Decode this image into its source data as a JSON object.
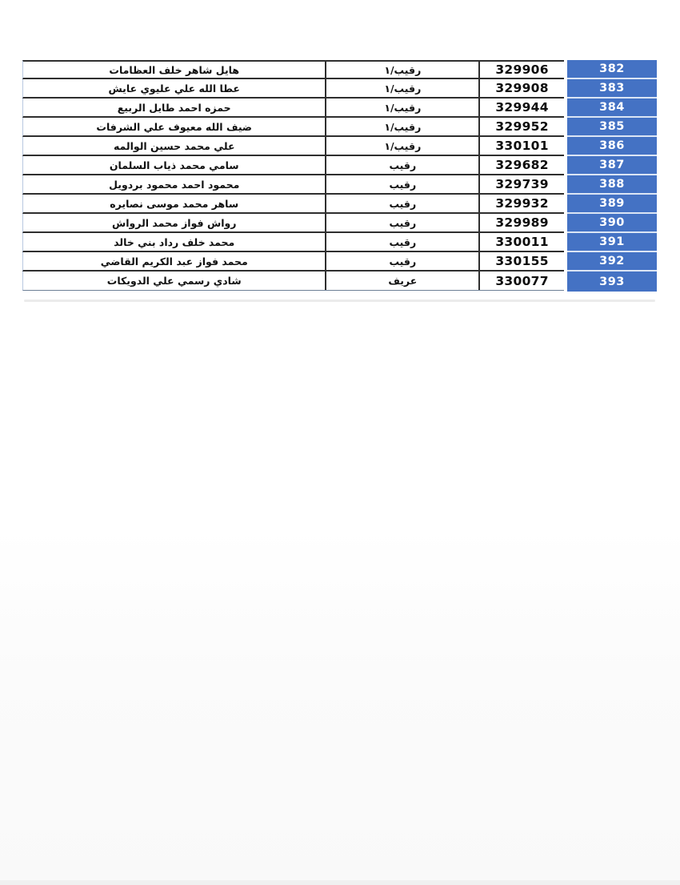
{
  "colors": {
    "row_index_bg": "#4472C4",
    "row_index_text": "#FFFFFF",
    "table_border": "#2F2F2F"
  },
  "table": {
    "rows": [
      {
        "name": "هايل شاهر خلف العظامات",
        "rank": "رقيب/١",
        "service_number": "329906",
        "row_number": "382"
      },
      {
        "name": "عطا الله علي عليوي عايش",
        "rank": "رقيب/١",
        "service_number": "329908",
        "row_number": "383"
      },
      {
        "name": "حمزه احمد طايل الربيع",
        "rank": "رقيب/١",
        "service_number": "329944",
        "row_number": "384"
      },
      {
        "name": "ضيف الله معيوف علي الشرفات",
        "rank": "رقيب/١",
        "service_number": "329952",
        "row_number": "385"
      },
      {
        "name": "علي محمد حسين الوالمه",
        "rank": "رقيب/١",
        "service_number": "330101",
        "row_number": "386"
      },
      {
        "name": "سامي محمد ذياب السلمان",
        "rank": "رقيب",
        "service_number": "329682",
        "row_number": "387"
      },
      {
        "name": "محمود احمد محمود بردويل",
        "rank": "رقيب",
        "service_number": "329739",
        "row_number": "388"
      },
      {
        "name": "ساهر محمد موسى نصايره",
        "rank": "رقيب",
        "service_number": "329932",
        "row_number": "389"
      },
      {
        "name": "رواش فواز محمد الرواش",
        "rank": "رقيب",
        "service_number": "329989",
        "row_number": "390"
      },
      {
        "name": "محمد خلف رداد بني خالد",
        "rank": "رقيب",
        "service_number": "330011",
        "row_number": "391"
      },
      {
        "name": "محمد فواز عبد الكريم القاضي",
        "rank": "رقيب",
        "service_number": "330155",
        "row_number": "392"
      },
      {
        "name": "شادي رسمي علي الدويكات",
        "rank": "عريف",
        "service_number": "330077",
        "row_number": "393"
      }
    ]
  }
}
